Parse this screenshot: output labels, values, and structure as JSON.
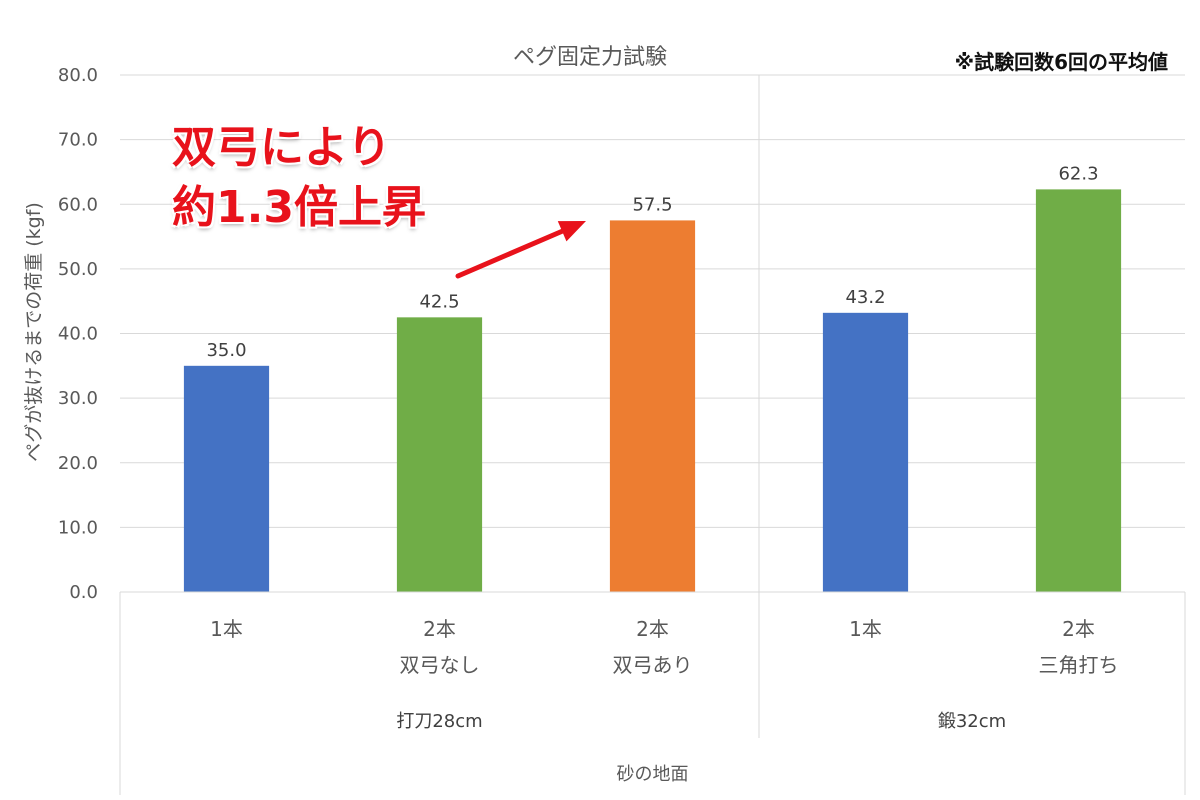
{
  "chart_data": {
    "type": "bar",
    "title": "ペグ固定力試験",
    "ylabel": "ペグが抜けるまでの荷重 (kgf)",
    "xlabel": "砂の地面",
    "ylim": [
      0,
      80
    ],
    "yticks": [
      "0.0",
      "10.0",
      "20.0",
      "30.0",
      "40.0",
      "50.0",
      "60.0",
      "70.0",
      "80.0"
    ],
    "grid": true,
    "groups": [
      {
        "name": "打刀28cm",
        "categories": [
          0,
          1,
          2
        ]
      },
      {
        "name": "鍛32cm",
        "categories": [
          3,
          4
        ]
      }
    ],
    "categories": [
      {
        "line1": "1本",
        "line2": ""
      },
      {
        "line1": "2本",
        "line2": "双弓なし"
      },
      {
        "line1": "2本",
        "line2": "双弓あり"
      },
      {
        "line1": "1本",
        "line2": ""
      },
      {
        "line1": "2本",
        "line2": "三角打ち"
      }
    ],
    "values": [
      35.0,
      42.5,
      57.5,
      43.2,
      62.3
    ],
    "value_labels": [
      "35.0",
      "42.5",
      "57.5",
      "43.2",
      "62.3"
    ],
    "colors": [
      "#4472c4",
      "#70ad47",
      "#ed7d31",
      "#4472c4",
      "#70ad47"
    ]
  },
  "annotation": {
    "callout_line1": "双弓により",
    "callout_line2": "約1.3倍上昇",
    "arrow_color": "#e8121b",
    "note": "※試験回数6回の平均値"
  }
}
